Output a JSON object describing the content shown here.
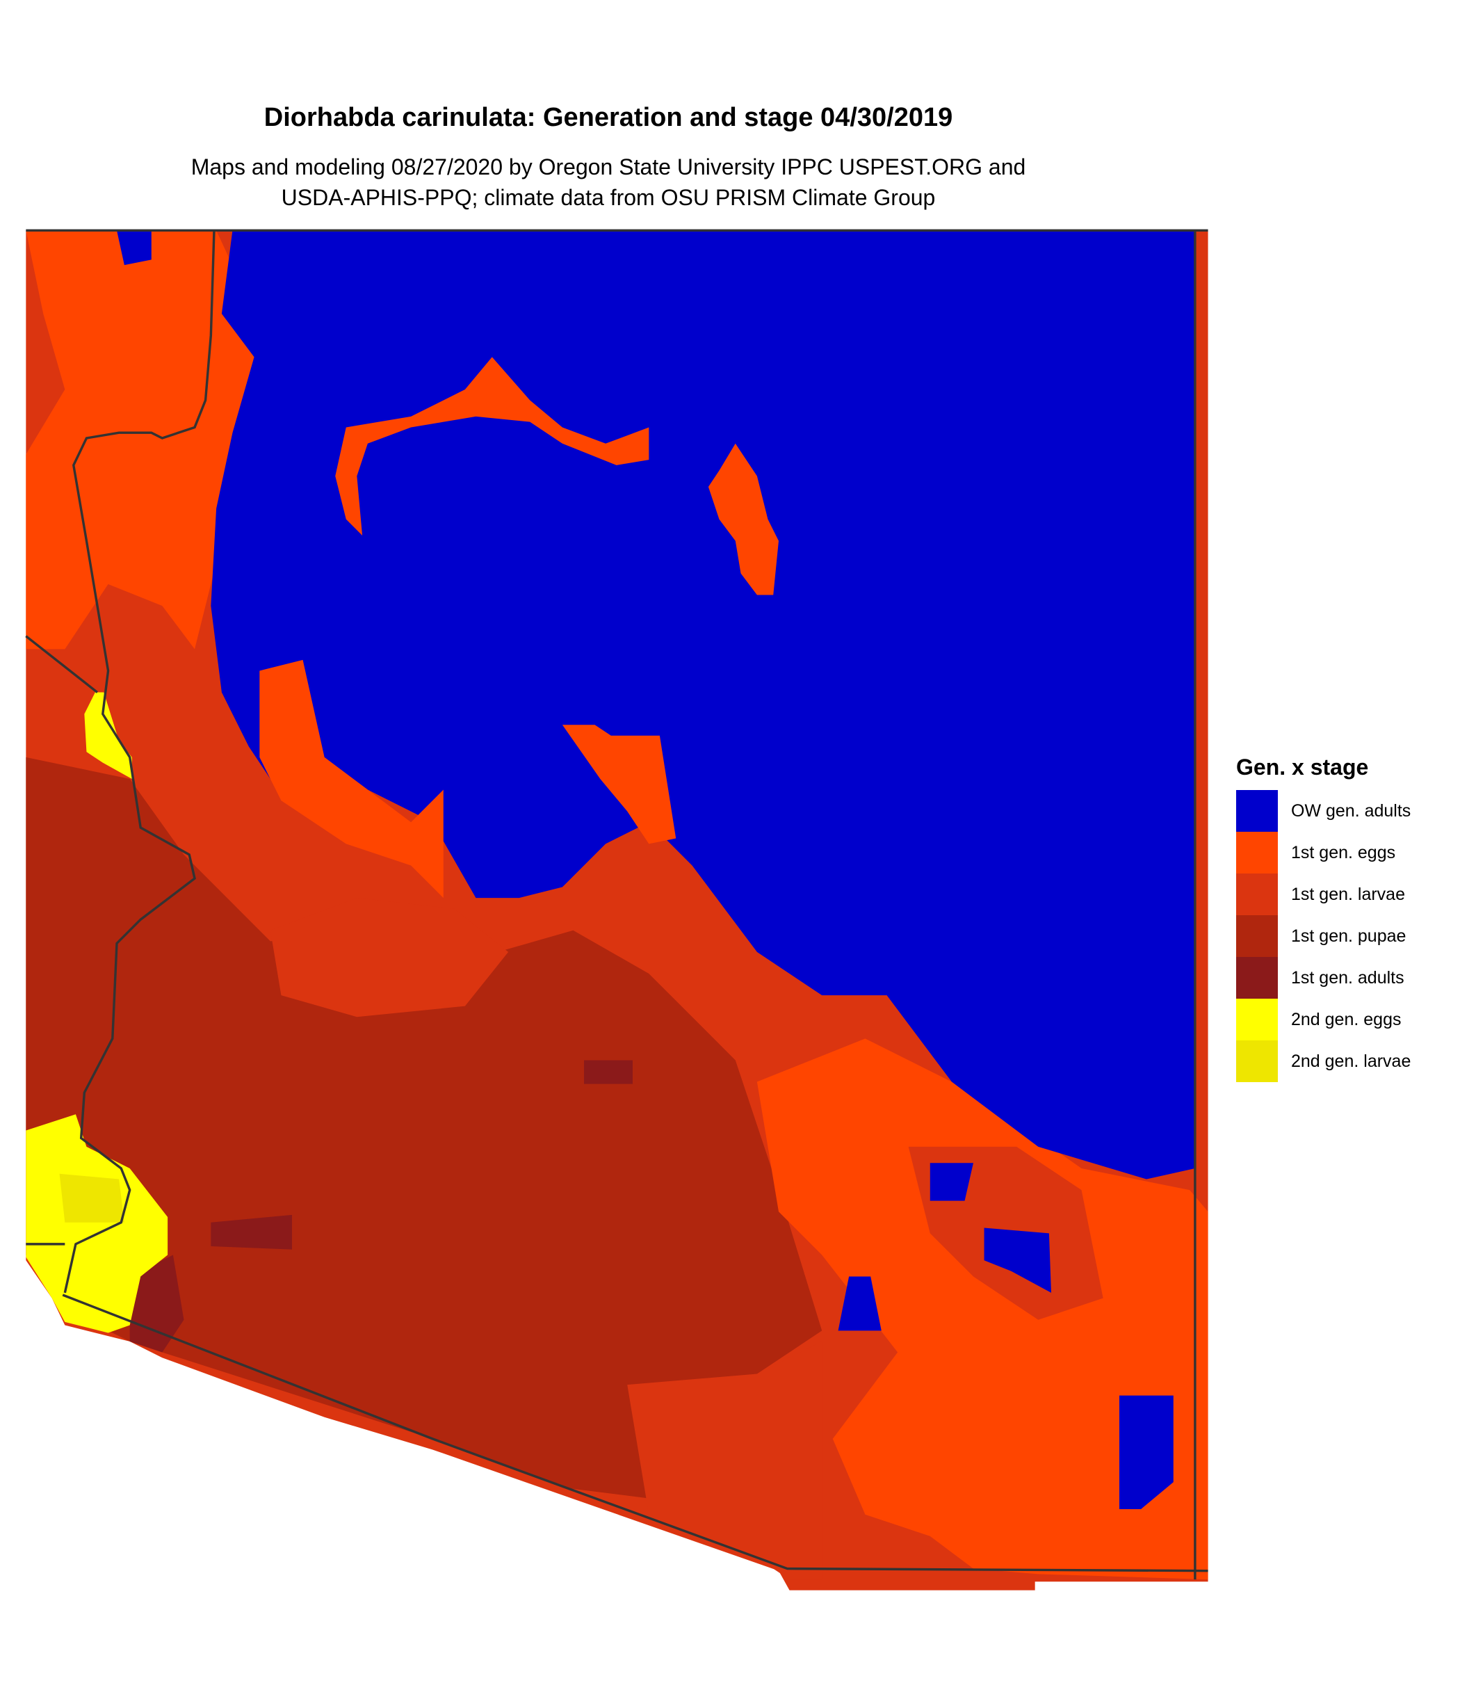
{
  "title": "Diorhabda carinulata: Generation and stage 04/30/2019",
  "subtitle_lines": [
    "Maps and modeling 08/27/2020 by Oregon State University IPPC USPEST.ORG and",
    "USDA-APHIS-PPQ; climate data from OSU PRISM Climate Group"
  ],
  "legend": {
    "title": "Gen. x stage",
    "items": [
      {
        "label": "OW gen. adults",
        "color": "#0000cc"
      },
      {
        "label": "1st gen. eggs",
        "color": "#ff4500"
      },
      {
        "label": "1st gen. larvae",
        "color": "#db3510"
      },
      {
        "label": "1st gen. pupae",
        "color": "#b0260e"
      },
      {
        "label": "1st gen. adults",
        "color": "#8b1a1a"
      },
      {
        "label": "2nd gen. eggs",
        "color": "#ffff00"
      },
      {
        "label": "2nd gen. larvae",
        "color": "#eee600"
      }
    ]
  },
  "border_color": "#333333"
}
